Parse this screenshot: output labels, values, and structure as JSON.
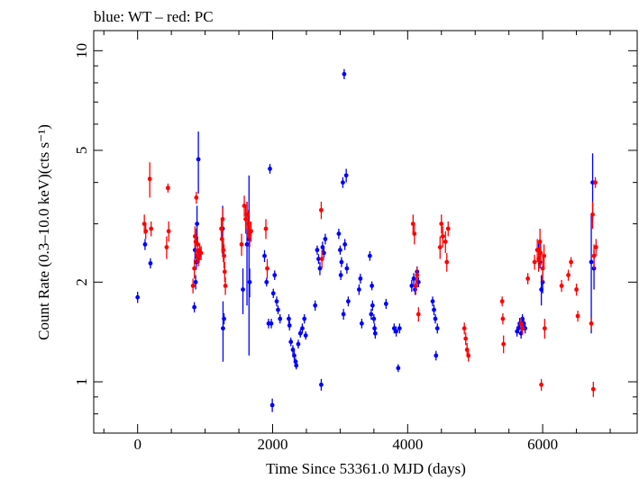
{
  "header": {
    "note": "blue: WT – red: PC"
  },
  "chart_data": {
    "type": "scatter",
    "title": "",
    "xlabel": "Time Since 53361.0 MJD (days)",
    "ylabel": "Count Rate (0.3–10.0 keV)(cts s⁻¹)",
    "xlim": [
      -650,
      7400
    ],
    "ylim": [
      0.7,
      11.5
    ],
    "yscale": "log",
    "x_ticks": [
      0,
      2000,
      4000,
      6000
    ],
    "x_ticks_labels": [
      "0",
      "2000",
      "4000",
      "6000"
    ],
    "y_ticks": [
      1,
      2,
      5,
      10
    ],
    "y_ticks_labels": [
      "1",
      "2",
      "5",
      "10"
    ],
    "grid": false,
    "legend": "none",
    "series": [
      {
        "name": "WT",
        "color": "#0000ff",
        "points": [
          [
            0,
            1.8,
            0.07
          ],
          [
            110,
            2.6,
            0.1
          ],
          [
            190,
            2.28,
            0.08
          ],
          [
            840,
            1.68,
            0.06
          ],
          [
            850,
            2.5,
            0.15
          ],
          [
            860,
            2.0,
            0.1
          ],
          [
            870,
            2.3,
            0.12
          ],
          [
            880,
            3.0,
            0.4
          ],
          [
            900,
            4.7,
            1.0
          ],
          [
            910,
            2.4,
            0.12
          ],
          [
            1260,
            2.9,
            0.5
          ],
          [
            1265,
            1.45,
            0.3
          ],
          [
            1280,
            1.55,
            0.06
          ],
          [
            1560,
            1.9,
            0.3
          ],
          [
            1620,
            2.6,
            0.9
          ],
          [
            1650,
            2.7,
            1.5
          ],
          [
            1660,
            2.0,
            0.2
          ],
          [
            1880,
            2.4,
            0.1
          ],
          [
            1910,
            2.0,
            0.06
          ],
          [
            1940,
            1.5,
            0.05
          ],
          [
            1960,
            4.4,
            0.15
          ],
          [
            1980,
            1.5,
            0.05
          ],
          [
            1995,
            0.85,
            0.04
          ],
          [
            2010,
            1.85,
            0.06
          ],
          [
            2030,
            2.1,
            0.07
          ],
          [
            2060,
            1.75,
            0.06
          ],
          [
            2080,
            1.65,
            0.05
          ],
          [
            2110,
            1.55,
            0.05
          ],
          [
            2240,
            1.55,
            0.05
          ],
          [
            2250,
            1.48,
            0.05
          ],
          [
            2270,
            1.32,
            0.04
          ],
          [
            2300,
            1.25,
            0.04
          ],
          [
            2320,
            1.2,
            0.04
          ],
          [
            2340,
            1.15,
            0.03
          ],
          [
            2350,
            1.12,
            0.03
          ],
          [
            2380,
            1.3,
            0.04
          ],
          [
            2410,
            1.4,
            0.04
          ],
          [
            2440,
            1.45,
            0.05
          ],
          [
            2470,
            1.55,
            0.05
          ],
          [
            2490,
            1.38,
            0.04
          ],
          [
            2630,
            1.7,
            0.06
          ],
          [
            2660,
            2.5,
            0.08
          ],
          [
            2680,
            2.35,
            0.08
          ],
          [
            2700,
            2.2,
            0.1
          ],
          [
            2720,
            0.98,
            0.04
          ],
          [
            2740,
            2.55,
            0.1
          ],
          [
            2760,
            2.45,
            0.08
          ],
          [
            2780,
            2.7,
            0.1
          ],
          [
            2980,
            2.8,
            0.1
          ],
          [
            3000,
            2.5,
            0.08
          ],
          [
            3010,
            2.1,
            0.07
          ],
          [
            3020,
            2.3,
            0.08
          ],
          [
            3040,
            4.0,
            0.15
          ],
          [
            3050,
            1.6,
            0.06
          ],
          [
            3060,
            8.5,
            0.3
          ],
          [
            3070,
            2.6,
            0.1
          ],
          [
            3090,
            4.2,
            0.2
          ],
          [
            3100,
            2.2,
            0.08
          ],
          [
            3120,
            1.75,
            0.06
          ],
          [
            3280,
            1.9,
            0.07
          ],
          [
            3300,
            2.05,
            0.07
          ],
          [
            3320,
            1.5,
            0.05
          ],
          [
            3440,
            2.4,
            0.08
          ],
          [
            3460,
            1.6,
            0.06
          ],
          [
            3470,
            1.95,
            0.06
          ],
          [
            3480,
            1.7,
            0.06
          ],
          [
            3500,
            1.55,
            0.05
          ],
          [
            3510,
            1.45,
            0.05
          ],
          [
            3520,
            1.4,
            0.05
          ],
          [
            3680,
            1.72,
            0.06
          ],
          [
            3800,
            1.45,
            0.05
          ],
          [
            3830,
            1.42,
            0.05
          ],
          [
            3860,
            1.1,
            0.03
          ],
          [
            3880,
            1.45,
            0.05
          ],
          [
            4060,
            1.95,
            0.08
          ],
          [
            4090,
            2.05,
            0.08
          ],
          [
            4110,
            1.9,
            0.07
          ],
          [
            4140,
            2.15,
            0.08
          ],
          [
            4160,
            2.0,
            0.07
          ],
          [
            4370,
            1.75,
            0.06
          ],
          [
            4390,
            1.65,
            0.06
          ],
          [
            4410,
            1.55,
            0.05
          ],
          [
            4420,
            1.2,
            0.04
          ],
          [
            4440,
            1.45,
            0.05
          ],
          [
            5620,
            1.42,
            0.05
          ],
          [
            5640,
            1.45,
            0.05
          ],
          [
            5660,
            1.5,
            0.06
          ],
          [
            5680,
            1.4,
            0.05
          ],
          [
            5700,
            1.55,
            0.05
          ],
          [
            5720,
            1.5,
            0.05
          ],
          [
            5740,
            1.45,
            0.05
          ],
          [
            5940,
            2.5,
            0.12
          ],
          [
            5960,
            2.3,
            0.1
          ],
          [
            5980,
            1.9,
            0.2
          ],
          [
            6000,
            2.0,
            0.15
          ],
          [
            6720,
            2.3,
            0.9
          ],
          [
            6740,
            4.0,
            0.9
          ],
          [
            6760,
            2.2,
            0.3
          ]
        ]
      },
      {
        "name": "PC",
        "color": "#ff0000",
        "points": [
          [
            100,
            3.0,
            0.2
          ],
          [
            120,
            2.85,
            0.15
          ],
          [
            180,
            4.1,
            0.5
          ],
          [
            200,
            2.9,
            0.15
          ],
          [
            430,
            2.55,
            0.2
          ],
          [
            450,
            3.85,
            0.12
          ],
          [
            460,
            2.85,
            0.2
          ],
          [
            820,
            1.95,
            0.1
          ],
          [
            840,
            2.2,
            0.15
          ],
          [
            850,
            2.75,
            0.2
          ],
          [
            860,
            2.65,
            0.25
          ],
          [
            870,
            3.6,
            0.15
          ],
          [
            880,
            2.4,
            0.12
          ],
          [
            890,
            2.6,
            0.15
          ],
          [
            900,
            2.35,
            0.12
          ],
          [
            920,
            2.5,
            0.12
          ],
          [
            940,
            2.45,
            0.12
          ],
          [
            1240,
            2.9,
            0.2
          ],
          [
            1250,
            2.7,
            0.25
          ],
          [
            1260,
            3.1,
            0.25
          ],
          [
            1270,
            2.5,
            0.2
          ],
          [
            1280,
            2.4,
            0.2
          ],
          [
            1290,
            2.15,
            0.15
          ],
          [
            1300,
            1.95,
            0.12
          ],
          [
            1540,
            2.6,
            0.2
          ],
          [
            1580,
            3.4,
            0.25
          ],
          [
            1600,
            3.1,
            0.3
          ],
          [
            1620,
            3.2,
            0.3
          ],
          [
            1640,
            3.0,
            0.3
          ],
          [
            1660,
            2.8,
            0.25
          ],
          [
            1680,
            2.85,
            0.2
          ],
          [
            1900,
            2.9,
            0.2
          ],
          [
            1920,
            2.2,
            0.15
          ],
          [
            2720,
            3.3,
            0.2
          ],
          [
            2730,
            2.35,
            0.15
          ],
          [
            4080,
            3.0,
            0.2
          ],
          [
            4100,
            2.8,
            0.2
          ],
          [
            4120,
            1.95,
            0.12
          ],
          [
            4140,
            2.1,
            0.12
          ],
          [
            4160,
            1.6,
            0.08
          ],
          [
            4480,
            2.55,
            0.2
          ],
          [
            4500,
            3.0,
            0.2
          ],
          [
            4520,
            2.75,
            0.2
          ],
          [
            4560,
            2.65,
            0.2
          ],
          [
            4580,
            2.3,
            0.15
          ],
          [
            4600,
            2.9,
            0.15
          ],
          [
            4840,
            1.45,
            0.06
          ],
          [
            4860,
            1.35,
            0.06
          ],
          [
            4880,
            1.25,
            0.06
          ],
          [
            4900,
            1.2,
            0.05
          ],
          [
            5400,
            1.75,
            0.06
          ],
          [
            5410,
            1.55,
            0.06
          ],
          [
            5420,
            1.3,
            0.08
          ],
          [
            5680,
            1.5,
            0.06
          ],
          [
            5700,
            1.45,
            0.06
          ],
          [
            5780,
            2.05,
            0.08
          ],
          [
            5880,
            2.3,
            0.12
          ],
          [
            5920,
            2.5,
            0.2
          ],
          [
            5940,
            2.35,
            0.2
          ],
          [
            5960,
            2.65,
            0.25
          ],
          [
            5970,
            2.45,
            0.2
          ],
          [
            5980,
            0.98,
            0.04
          ],
          [
            6000,
            2.2,
            0.2
          ],
          [
            6020,
            2.4,
            0.2
          ],
          [
            6030,
            1.45,
            0.1
          ],
          [
            6280,
            1.95,
            0.08
          ],
          [
            6380,
            2.1,
            0.08
          ],
          [
            6420,
            2.3,
            0.08
          ],
          [
            6500,
            1.9,
            0.08
          ],
          [
            6520,
            1.58,
            0.06
          ],
          [
            6720,
            1.5,
            0.06
          ],
          [
            6740,
            3.2,
            0.3
          ],
          [
            6750,
            0.95,
            0.05
          ],
          [
            6760,
            2.4,
            0.2
          ],
          [
            6780,
            4.0,
            0.15
          ],
          [
            6790,
            2.55,
            0.15
          ]
        ]
      }
    ]
  }
}
